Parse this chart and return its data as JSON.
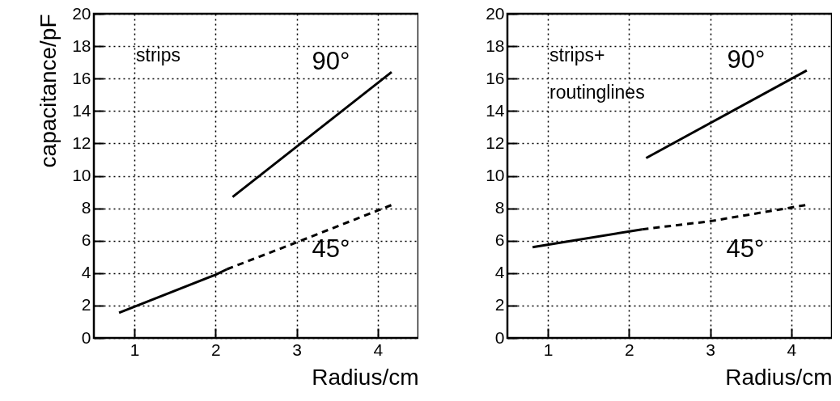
{
  "chart_data": [
    {
      "type": "line",
      "xlabel": "Radius/cm",
      "ylabel": "capacitance/pF",
      "xlim": [
        0.5,
        4.5
      ],
      "ylim": [
        0,
        20
      ],
      "xticks": [
        1,
        2,
        3,
        4
      ],
      "yticks": [
        0,
        2,
        4,
        6,
        8,
        10,
        12,
        14,
        16,
        18,
        20
      ],
      "grid": true,
      "series": [
        {
          "name": "90°",
          "color": "#000000",
          "line_style": "solid",
          "x": [
            2.21,
            4.17
          ],
          "values": [
            8.7,
            16.4
          ]
        },
        {
          "color": "#000000",
          "line_style": "solid",
          "x": [
            0.81,
            2.0,
            2.14
          ],
          "values": [
            1.55,
            3.9,
            4.24
          ]
        },
        {
          "name": "45°",
          "color": "#000000",
          "line_style": "dashed",
          "x": [
            2.14,
            3.0,
            4.17
          ],
          "values": [
            4.24,
            5.9,
            8.2
          ]
        }
      ],
      "annotations": [
        "strips"
      ]
    },
    {
      "type": "line",
      "xlabel": "Radius/cm",
      "xlim": [
        0.5,
        4.5
      ],
      "ylim": [
        0,
        20
      ],
      "xticks": [
        1,
        2,
        3,
        4
      ],
      "yticks": [
        0,
        2,
        4,
        6,
        8,
        10,
        12,
        14,
        16,
        18,
        20
      ],
      "grid": true,
      "series": [
        {
          "name": "90°",
          "color": "#000000",
          "line_style": "solid",
          "x": [
            2.21,
            4.19
          ],
          "values": [
            11.1,
            16.5
          ]
        },
        {
          "color": "#000000",
          "line_style": "solid",
          "x": [
            0.81,
            2.16
          ],
          "values": [
            5.6,
            6.7
          ]
        },
        {
          "name": "45°",
          "color": "#000000",
          "line_style": "dashed",
          "x": [
            2.16,
            3.0,
            4.18
          ],
          "values": [
            6.7,
            7.2,
            8.2
          ]
        }
      ],
      "annotations": [
        "strips+",
        "routinglines"
      ]
    }
  ]
}
